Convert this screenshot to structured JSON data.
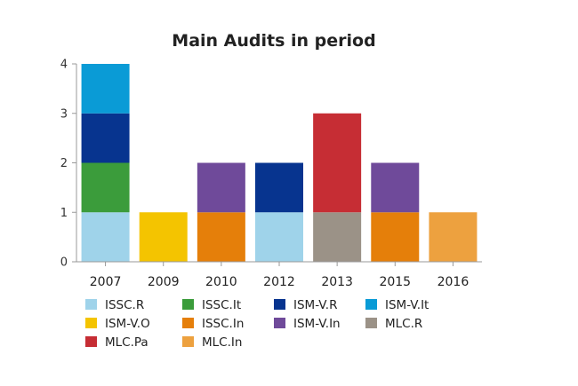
{
  "chart_data": {
    "type": "bar",
    "stacked": true,
    "title": "Main Audits in period",
    "xlabel": "",
    "ylabel": "",
    "categories": [
      "2007",
      "2009",
      "2010",
      "2012",
      "2013",
      "2015",
      "2016"
    ],
    "ylim": [
      0,
      4
    ],
    "yticks": [
      0,
      1,
      2,
      3,
      4
    ],
    "grid": false,
    "legend_position": "bottom",
    "series": [
      {
        "name": "ISSC.R",
        "color": "#9fd3ea",
        "values": [
          1,
          0,
          0,
          1,
          0,
          0,
          0
        ]
      },
      {
        "name": "ISSC.It",
        "color": "#3b9c3b",
        "values": [
          1,
          0,
          0,
          0,
          0,
          0,
          0
        ]
      },
      {
        "name": "ISM-V.R",
        "color": "#07348f",
        "values": [
          1,
          0,
          0,
          1,
          0,
          0,
          0
        ]
      },
      {
        "name": "ISM-V.It",
        "color": "#0a9bd6",
        "values": [
          1,
          0,
          0,
          0,
          0,
          0,
          0
        ]
      },
      {
        "name": "ISM-V.O",
        "color": "#f4c400",
        "values": [
          0,
          1,
          0,
          0,
          0,
          0,
          0
        ]
      },
      {
        "name": "ISSC.In",
        "color": "#e57f0a",
        "values": [
          0,
          0,
          1,
          0,
          0,
          1,
          0
        ]
      },
      {
        "name": "ISM-V.In",
        "color": "#6f4a9a",
        "values": [
          0,
          0,
          1,
          0,
          0,
          1,
          0
        ]
      },
      {
        "name": "MLC.R",
        "color": "#9b9287",
        "values": [
          0,
          0,
          0,
          0,
          1,
          0,
          0
        ]
      },
      {
        "name": "MLC.Pa",
        "color": "#c62d34",
        "values": [
          0,
          0,
          0,
          0,
          2,
          0,
          0
        ]
      },
      {
        "name": "MLC.In",
        "color": "#eda13f",
        "values": [
          0,
          0,
          0,
          0,
          0,
          0,
          1
        ]
      }
    ]
  }
}
